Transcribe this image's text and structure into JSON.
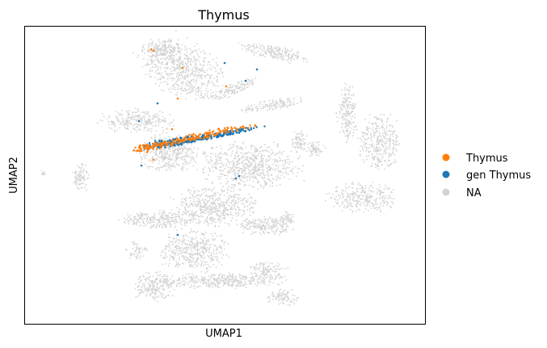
{
  "chart_data": {
    "type": "scatter",
    "title": "Thymus",
    "xlabel": "UMAP1",
    "ylabel": "UMAP2",
    "xticks": [],
    "yticks": [],
    "grid": false,
    "legend_position": "right",
    "series": [
      {
        "name": "NA",
        "color": "#d3d3d3"
      },
      {
        "name": "gen Thymus",
        "color": "#1f77b4"
      },
      {
        "name": "Thymus",
        "color": "#ff7f0e"
      }
    ],
    "legend": [
      {
        "label": "Thymus",
        "color": "#ff7f0e"
      },
      {
        "label": "gen Thymus",
        "color": "#1f77b4"
      },
      {
        "label": "NA",
        "color": "#d3d3d3"
      }
    ]
  }
}
